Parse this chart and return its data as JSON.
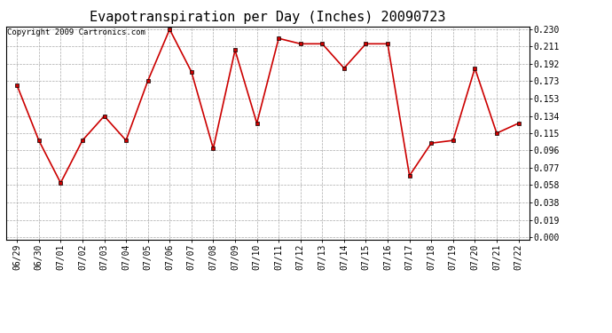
{
  "title": "Evapotranspiration per Day (Inches) 20090723",
  "copyright": "Copyright 2009 Cartronics.com",
  "dates": [
    "06/29",
    "06/30",
    "07/01",
    "07/02",
    "07/03",
    "07/04",
    "07/05",
    "07/06",
    "07/07",
    "07/08",
    "07/09",
    "07/10",
    "07/11",
    "07/12",
    "07/13",
    "07/14",
    "07/15",
    "07/16",
    "07/17",
    "07/18",
    "07/19",
    "07/20",
    "07/21",
    "07/22"
  ],
  "values": [
    0.168,
    0.107,
    0.06,
    0.107,
    0.134,
    0.107,
    0.173,
    0.23,
    0.183,
    0.098,
    0.207,
    0.126,
    0.22,
    0.214,
    0.214,
    0.187,
    0.214,
    0.214,
    0.068,
    0.104,
    0.107,
    0.187,
    0.115,
    0.126
  ],
  "line_color": "#cc0000",
  "marker": "s",
  "marker_size": 3,
  "ylim_min": 0.0,
  "ylim_max": 0.23,
  "yticks": [
    0.0,
    0.019,
    0.038,
    0.058,
    0.077,
    0.096,
    0.115,
    0.134,
    0.153,
    0.173,
    0.192,
    0.211,
    0.23
  ],
  "background_color": "#ffffff",
  "grid_color": "#aaaaaa",
  "title_fontsize": 11,
  "tick_fontsize": 7,
  "copyright_fontsize": 6.5
}
